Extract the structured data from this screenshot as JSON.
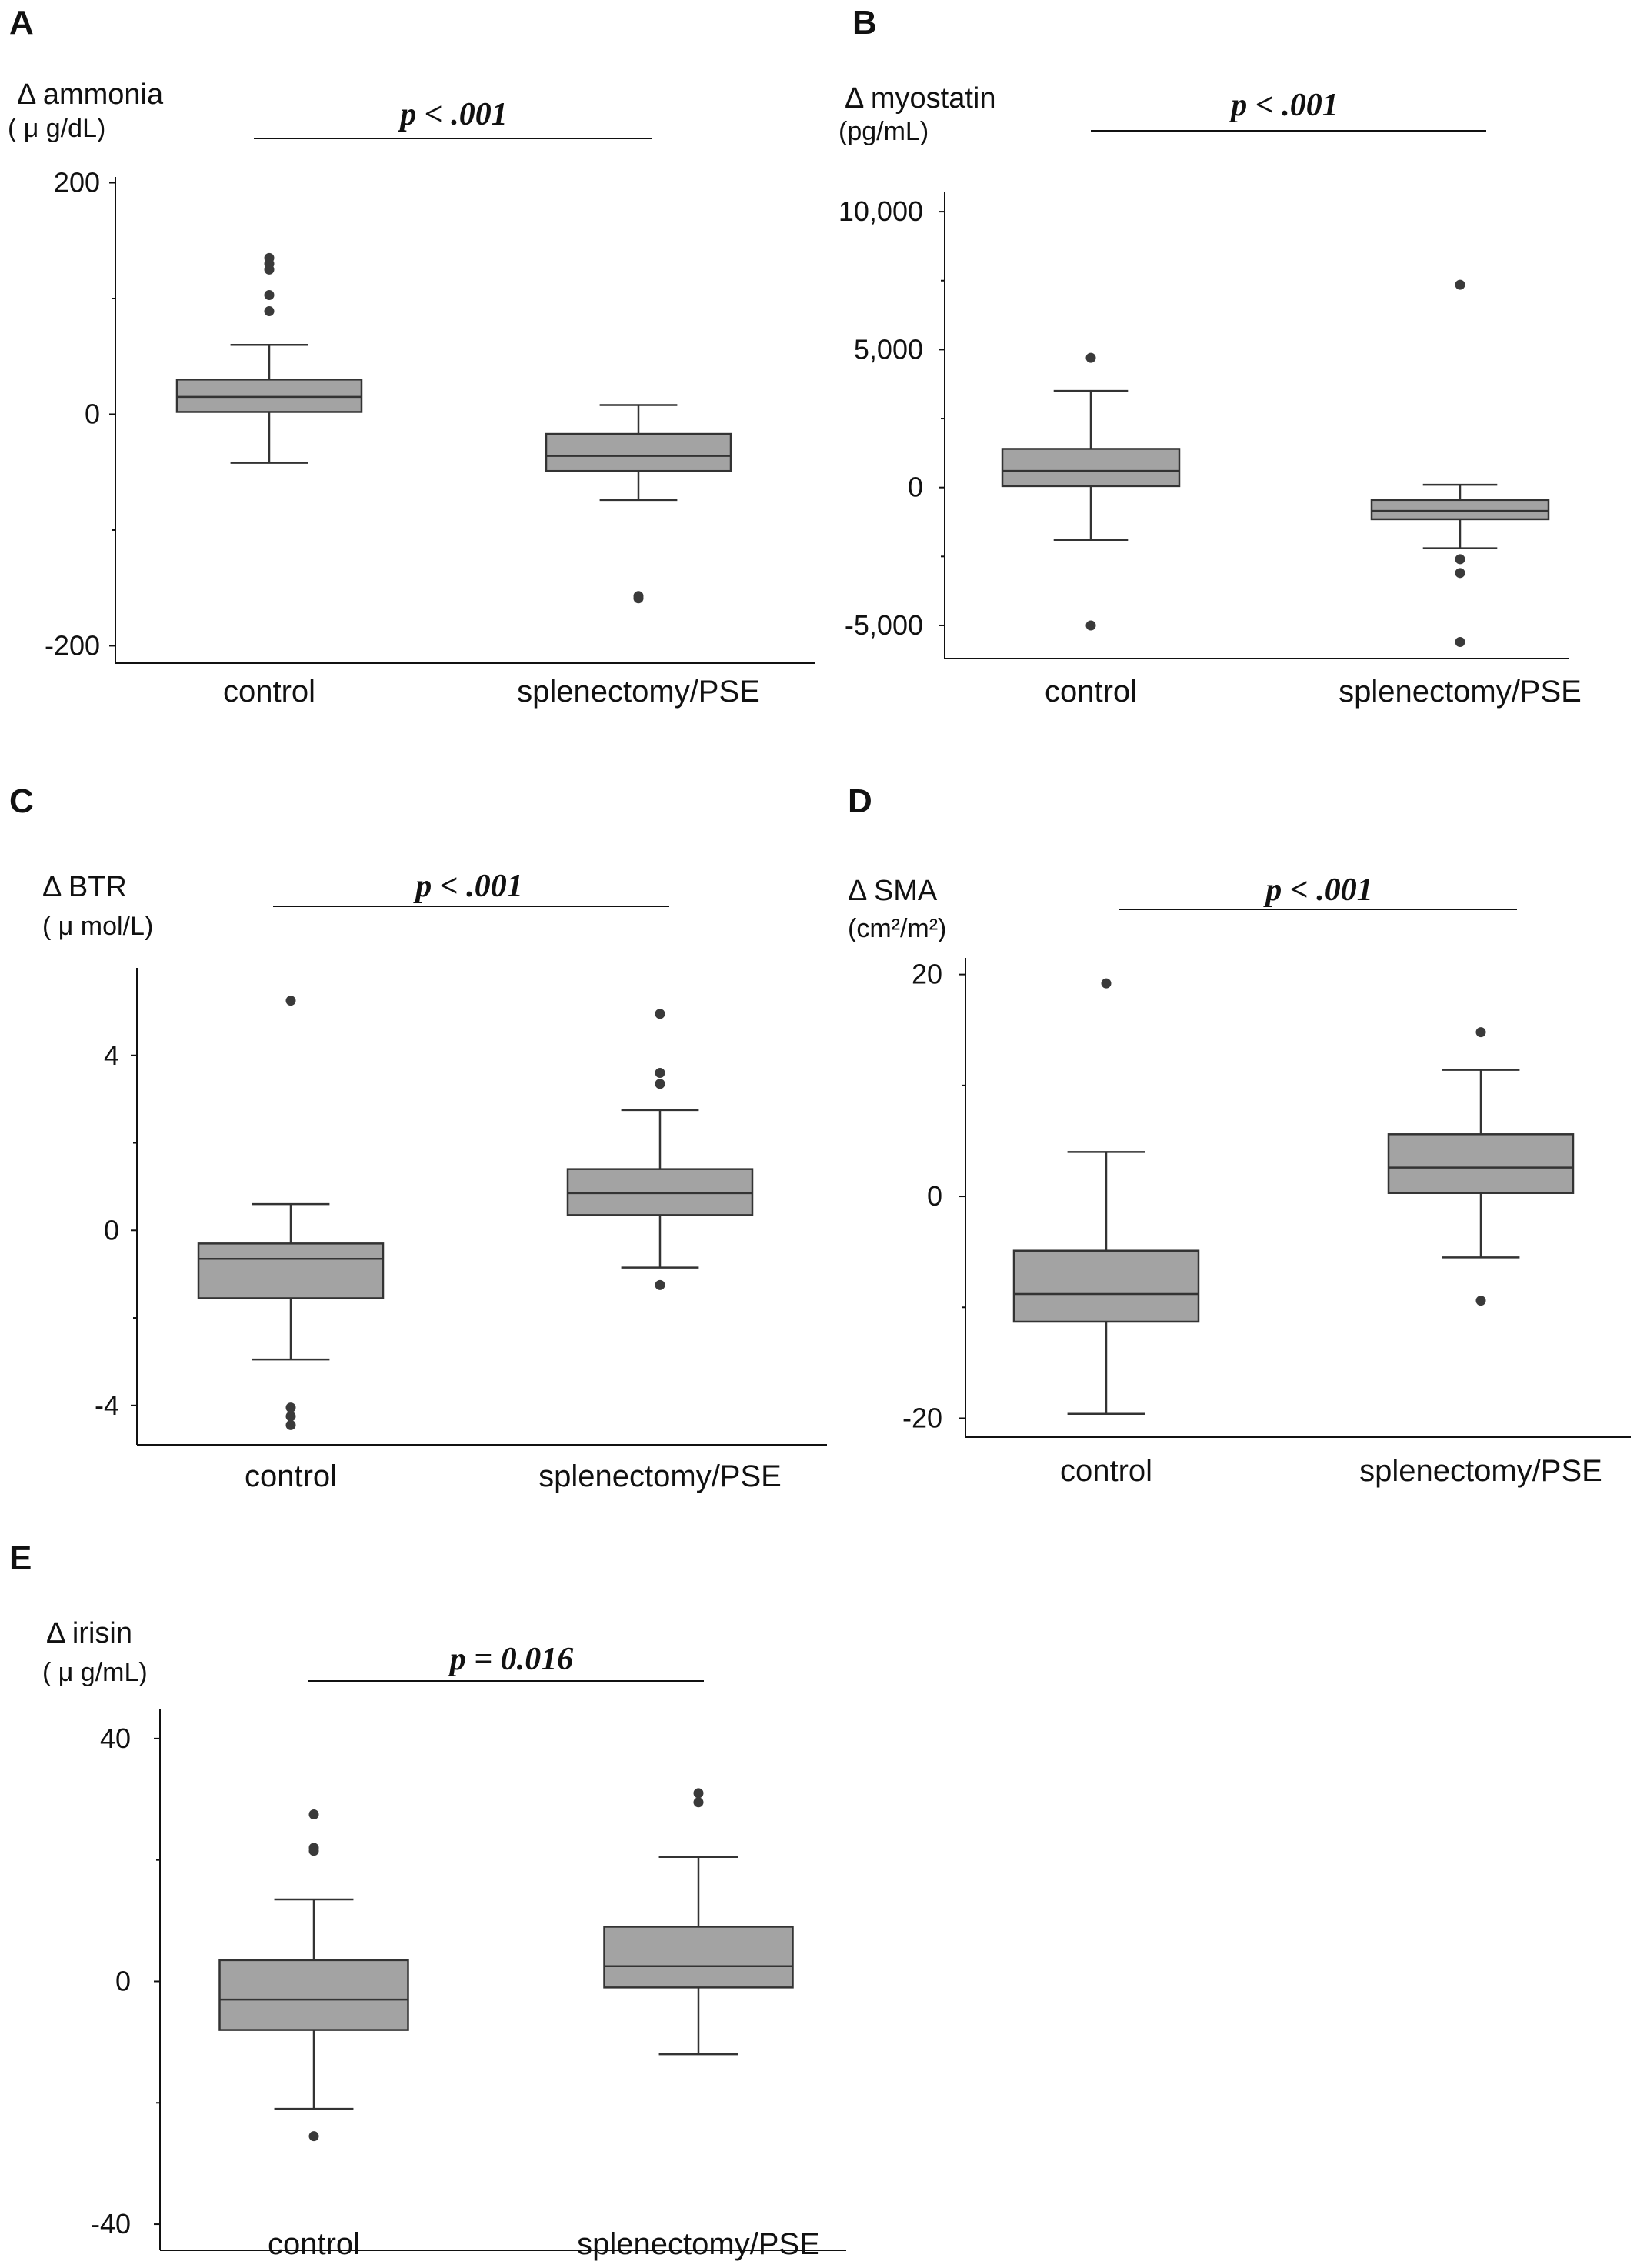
{
  "colors": {
    "box_fill": "#a3a3a3",
    "stroke": "#333333",
    "outlier": "#3a3a3a"
  },
  "chart_data": [
    {
      "type": "box",
      "panel": "A",
      "ylabel": "Δ ammonia",
      "yunit": "( μ g/dL)",
      "categories": [
        "control",
        "splenectomy/PSE"
      ],
      "yticks": [
        200,
        0,
        -200
      ],
      "ytick_labels": [
        "200",
        "0",
        "-200"
      ],
      "ylim": [
        -215,
        205
      ],
      "annotation": "p < .001",
      "boxes": [
        {
          "whisker_low": -42,
          "q1": 2,
          "median": 15,
          "q3": 30,
          "whisker_high": 60,
          "outliers": [
            135,
            130,
            125,
            103,
            89
          ]
        },
        {
          "whisker_low": -74,
          "q1": -49,
          "median": -36,
          "q3": -17,
          "whisker_high": 8,
          "outliers": [
            -157,
            -159
          ]
        }
      ]
    },
    {
      "type": "box",
      "panel": "B",
      "ylabel": "Δ myostatin",
      "yunit": "(pg/mL)",
      "categories": [
        "control",
        "splenectomy/PSE"
      ],
      "yticks": [
        10000,
        5000,
        0,
        -5000
      ],
      "ytick_labels": [
        "10,000",
        "5,000",
        "0",
        "-5,000"
      ],
      "ylim": [
        -6200,
        10700
      ],
      "annotation": "p < .001",
      "boxes": [
        {
          "whisker_low": -1900,
          "q1": 50,
          "median": 600,
          "q3": 1400,
          "whisker_high": 3500,
          "outliers": [
            4700,
            -5000
          ]
        },
        {
          "whisker_low": -2200,
          "q1": -1150,
          "median": -850,
          "q3": -450,
          "whisker_high": 100,
          "outliers": [
            7350,
            -2600,
            -3100,
            -5600
          ]
        }
      ]
    },
    {
      "type": "box",
      "panel": "C",
      "ylabel": "Δ BTR",
      "yunit": "( μ mol/L)",
      "categories": [
        "control",
        "splenectomy/PSE"
      ],
      "yticks": [
        4,
        0,
        -4
      ],
      "ytick_labels": [
        "4",
        "0",
        "-4"
      ],
      "ylim": [
        -4.9,
        6
      ],
      "annotation": "p < .001",
      "boxes": [
        {
          "whisker_low": -2.95,
          "q1": -1.55,
          "median": -0.65,
          "q3": -0.3,
          "whisker_high": 0.6,
          "outliers": [
            5.25,
            -4.05,
            -4.25,
            -4.45
          ]
        },
        {
          "whisker_low": -0.85,
          "q1": 0.35,
          "median": 0.85,
          "q3": 1.4,
          "whisker_high": 2.75,
          "outliers": [
            4.95,
            3.6,
            3.35,
            -1.25
          ]
        }
      ]
    },
    {
      "type": "box",
      "panel": "D",
      "ylabel": "Δ SMA",
      "yunit": "(cm²/m²)",
      "categories": [
        "control",
        "splenectomy/PSE"
      ],
      "yticks": [
        20,
        0,
        -20
      ],
      "ytick_labels": [
        "20",
        "0",
        "-20"
      ],
      "ylim": [
        -21.7,
        21.5
      ],
      "annotation": "p < .001",
      "boxes": [
        {
          "whisker_low": -19.6,
          "q1": -11.3,
          "median": -8.8,
          "q3": -4.9,
          "whisker_high": 4,
          "outliers": [
            19.2
          ]
        },
        {
          "whisker_low": -5.5,
          "q1": 0.3,
          "median": 2.6,
          "q3": 5.6,
          "whisker_high": 11.4,
          "outliers": [
            14.8,
            -9.4
          ]
        }
      ]
    },
    {
      "type": "box",
      "panel": "E",
      "ylabel": "Δ irisin",
      "yunit": "( μ g/mL)",
      "categories": [
        "control",
        "splenectomy/PSE"
      ],
      "yticks": [
        40,
        0,
        -40
      ],
      "ytick_labels": [
        "40",
        "0",
        "-40"
      ],
      "ylim": [
        -44.3,
        44.8
      ],
      "annotation": "p = 0.016",
      "boxes": [
        {
          "whisker_low": -21,
          "q1": -8,
          "median": -3,
          "q3": 3.5,
          "whisker_high": 13.5,
          "outliers": [
            27.5,
            22,
            21.5,
            -25.5
          ]
        },
        {
          "whisker_low": -12,
          "q1": -1,
          "median": 2.5,
          "q3": 9,
          "whisker_high": 20.5,
          "outliers": [
            31,
            29.5
          ]
        }
      ]
    }
  ]
}
